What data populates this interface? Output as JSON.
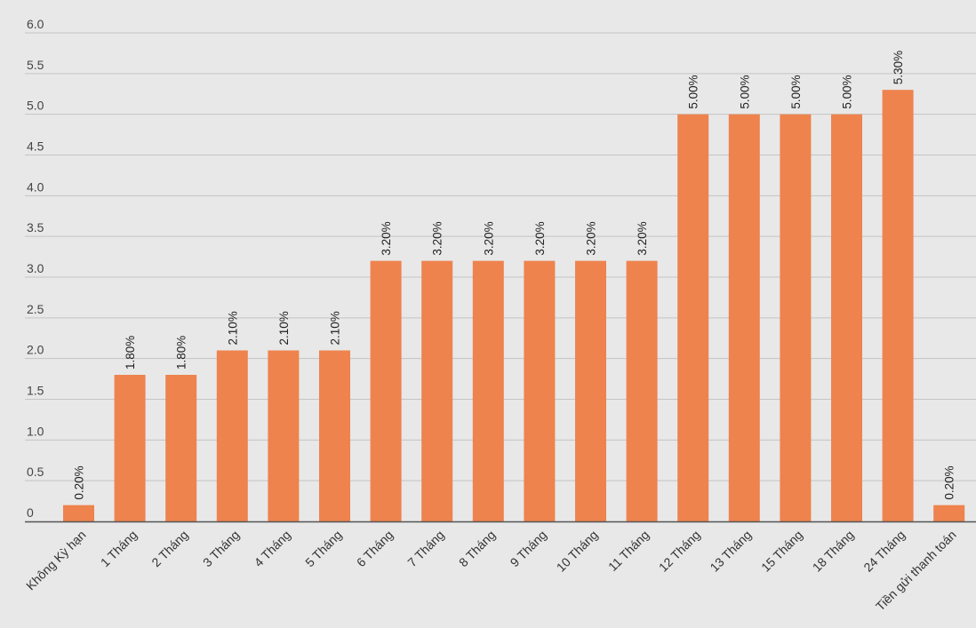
{
  "chart_data": {
    "type": "bar",
    "title": "",
    "xlabel": "",
    "ylabel": "",
    "ylim": [
      0,
      6
    ],
    "yticks": [
      0,
      0.5,
      1,
      1.5,
      2,
      2.5,
      3,
      3.5,
      4,
      4.5,
      5,
      5.5,
      6
    ],
    "ytick_labels": [
      "0",
      "0.5",
      "1.0",
      "1.5",
      "2.0",
      "2.5",
      "3.0",
      "3.5",
      "4.0",
      "4.5",
      "5.0",
      "5.5",
      "6.0"
    ],
    "grid": true,
    "categories": [
      "Không Kỳ hạn",
      "1 Tháng",
      "2 Tháng",
      "3 Tháng",
      "4 Tháng",
      "5 Tháng",
      "6 Tháng",
      "7 Tháng",
      "8 Tháng",
      "9 Tháng",
      "10 Tháng",
      "11 Tháng",
      "12 Tháng",
      "13 Tháng",
      "15 Tháng",
      "18 Tháng",
      "24 Tháng",
      "Tiền gửi thanh toán"
    ],
    "values": [
      0.2,
      1.8,
      1.8,
      2.1,
      2.1,
      2.1,
      3.2,
      3.2,
      3.2,
      3.2,
      3.2,
      3.2,
      5.0,
      5.0,
      5.0,
      5.0,
      5.3,
      0.2
    ],
    "value_labels": [
      "0.20%",
      "1.80%",
      "1.80%",
      "2.10%",
      "2.10%",
      "2.10%",
      "3.20%",
      "3.20%",
      "3.20%",
      "3.20%",
      "3.20%",
      "3.20%",
      "5.00%",
      "5.00%",
      "5.00%",
      "5.00%",
      "5.30%",
      "0.20%"
    ],
    "colors": {
      "bar": "#ee834e",
      "grid": "#c4c4c4",
      "axis": "#555555",
      "background": "#e8e8e8"
    }
  }
}
